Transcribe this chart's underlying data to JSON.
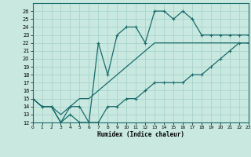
{
  "xlabel": "Humidex (Indice chaleur)",
  "background_color": "#c8e8e0",
  "grid_color": "#a8d4cc",
  "line_color": "#1a6b6b",
  "x_hours": [
    0,
    1,
    2,
    3,
    4,
    5,
    6,
    7,
    8,
    9,
    10,
    11,
    12,
    13,
    14,
    15,
    16,
    17,
    18,
    19,
    20,
    21,
    22,
    23
  ],
  "y_max": [
    15,
    14,
    14,
    12,
    14,
    14,
    12,
    22,
    18,
    23,
    24,
    24,
    22,
    26,
    26,
    25,
    26,
    25,
    23,
    23,
    23,
    23,
    23,
    23
  ],
  "y_mean": [
    15,
    14,
    14,
    13,
    14,
    15,
    15,
    16,
    17,
    18,
    19,
    20,
    21,
    22,
    22,
    22,
    22,
    22,
    22,
    22,
    22,
    22,
    22,
    22
  ],
  "y_min": [
    15,
    14,
    14,
    12,
    13,
    12,
    12,
    12,
    14,
    14,
    15,
    15,
    16,
    17,
    17,
    17,
    17,
    18,
    18,
    19,
    20,
    21,
    22,
    22
  ],
  "xlim": [
    0,
    23
  ],
  "ylim": [
    12,
    27
  ],
  "yticks": [
    12,
    13,
    14,
    15,
    16,
    17,
    18,
    19,
    20,
    21,
    22,
    23,
    24,
    25,
    26
  ],
  "xticks": [
    0,
    1,
    2,
    3,
    4,
    5,
    6,
    7,
    8,
    9,
    10,
    11,
    12,
    13,
    14,
    15,
    16,
    17,
    18,
    19,
    20,
    21,
    22,
    23
  ]
}
